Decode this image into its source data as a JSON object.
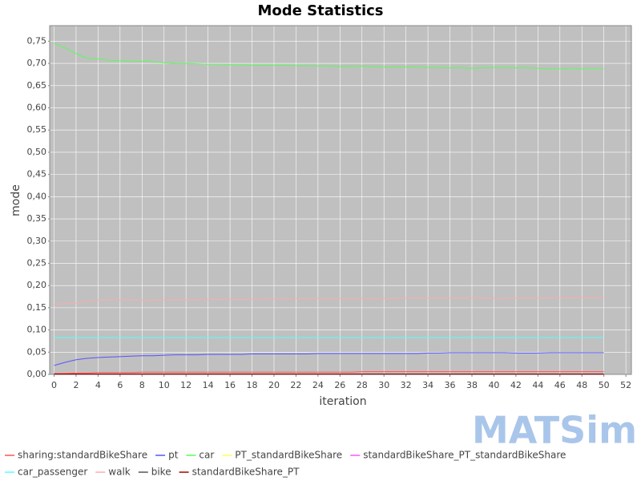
{
  "chart_data": {
    "type": "line",
    "title": "Mode Statistics",
    "x_label": "iteration",
    "y_label": "mode",
    "logo": "MATSim",
    "grid": true,
    "legend": "bottom",
    "x": [
      0,
      1,
      2,
      3,
      4,
      5,
      6,
      7,
      8,
      9,
      10,
      11,
      12,
      13,
      14,
      15,
      16,
      17,
      18,
      19,
      20,
      21,
      22,
      23,
      24,
      25,
      26,
      27,
      28,
      29,
      30,
      31,
      32,
      33,
      34,
      35,
      36,
      37,
      38,
      39,
      40,
      41,
      42,
      43,
      44,
      45,
      46,
      47,
      48,
      49,
      50
    ],
    "xlim": [
      -0.4,
      52.5
    ],
    "xticks": [
      0,
      2,
      4,
      6,
      8,
      10,
      12,
      14,
      16,
      18,
      20,
      22,
      24,
      26,
      28,
      30,
      32,
      34,
      36,
      38,
      40,
      42,
      44,
      46,
      48,
      50,
      52
    ],
    "ylim": [
      0,
      0.785
    ],
    "yticks": [
      {
        "value": 0,
        "label": "0,00"
      },
      {
        "value": 0.05,
        "label": "0,05"
      },
      {
        "value": 0.1,
        "label": "0,10"
      },
      {
        "value": 0.15,
        "label": "0,15"
      },
      {
        "value": 0.2,
        "label": "0,20"
      },
      {
        "value": 0.25,
        "label": "0,25"
      },
      {
        "value": 0.3,
        "label": "0,30"
      },
      {
        "value": 0.35,
        "label": "0,35"
      },
      {
        "value": 0.4,
        "label": "0,40"
      },
      {
        "value": 0.45,
        "label": "0,45"
      },
      {
        "value": 0.5,
        "label": "0,50"
      },
      {
        "value": 0.55,
        "label": "0,55"
      },
      {
        "value": 0.6,
        "label": "0,60"
      },
      {
        "value": 0.65,
        "label": "0,65"
      },
      {
        "value": 0.7,
        "label": "0,70"
      },
      {
        "value": 0.75,
        "label": "0,75"
      }
    ],
    "series": [
      {
        "name": "sharing:standardBikeShare",
        "color": "#ff5555",
        "values": [
          0.002,
          0.002,
          0.003,
          0.003,
          0.004,
          0.004,
          0.004,
          0.004,
          0.005,
          0.005,
          0.005,
          0.005,
          0.005,
          0.005,
          0.005,
          0.005,
          0.005,
          0.005,
          0.005,
          0.005,
          0.005,
          0.005,
          0.005,
          0.005,
          0.005,
          0.005,
          0.005,
          0.005,
          0.006,
          0.006,
          0.006,
          0.006,
          0.006,
          0.006,
          0.006,
          0.006,
          0.006,
          0.006,
          0.006,
          0.006,
          0.006,
          0.006,
          0.006,
          0.006,
          0.006,
          0.006,
          0.006,
          0.006,
          0.006,
          0.006,
          0.006
        ]
      },
      {
        "name": "pt",
        "color": "#5555ff",
        "values": [
          0.02,
          0.027,
          0.033,
          0.036,
          0.038,
          0.039,
          0.04,
          0.041,
          0.042,
          0.042,
          0.043,
          0.044,
          0.044,
          0.044,
          0.045,
          0.045,
          0.045,
          0.045,
          0.046,
          0.046,
          0.046,
          0.046,
          0.046,
          0.046,
          0.047,
          0.047,
          0.047,
          0.047,
          0.047,
          0.047,
          0.047,
          0.047,
          0.047,
          0.047,
          0.048,
          0.048,
          0.049,
          0.049,
          0.049,
          0.049,
          0.049,
          0.049,
          0.048,
          0.048,
          0.048,
          0.049,
          0.049,
          0.049,
          0.049,
          0.049,
          0.049
        ]
      },
      {
        "name": "car",
        "color": "#55ff55",
        "values": [
          0.745,
          0.735,
          0.722,
          0.712,
          0.71,
          0.707,
          0.706,
          0.705,
          0.705,
          0.704,
          0.701,
          0.7,
          0.7,
          0.699,
          0.698,
          0.698,
          0.697,
          0.697,
          0.696,
          0.696,
          0.696,
          0.696,
          0.695,
          0.695,
          0.694,
          0.694,
          0.693,
          0.693,
          0.694,
          0.693,
          0.692,
          0.692,
          0.692,
          0.692,
          0.691,
          0.691,
          0.69,
          0.69,
          0.689,
          0.69,
          0.691,
          0.691,
          0.69,
          0.69,
          0.689,
          0.688,
          0.688,
          0.688,
          0.688,
          0.688,
          0.688
        ]
      },
      {
        "name": "PT_standardBikeShare",
        "color": "#ffff55",
        "values": [
          0,
          0,
          0,
          0,
          0,
          0,
          0,
          0,
          0,
          0,
          0,
          0,
          0,
          0,
          0,
          0,
          0,
          0,
          0,
          0,
          0,
          0,
          0,
          0,
          0,
          0,
          0,
          0,
          0,
          0,
          0,
          0,
          0,
          0,
          0,
          0,
          0,
          0,
          0,
          0,
          0,
          0,
          0,
          0,
          0,
          0,
          0,
          0,
          0,
          0,
          0
        ]
      },
      {
        "name": "standardBikeShare_PT_standardBikeShare",
        "color": "#ff55ff",
        "values": [
          0,
          0,
          0,
          0,
          0,
          0,
          0,
          0,
          0,
          0,
          0,
          0,
          0,
          0,
          0,
          0,
          0,
          0,
          0,
          0,
          0,
          0,
          0,
          0,
          0,
          0,
          0,
          0,
          0,
          0,
          0,
          0,
          0,
          0,
          0,
          0,
          0,
          0,
          0,
          0,
          0,
          0,
          0,
          0,
          0,
          0,
          0,
          0,
          0,
          0,
          0
        ]
      },
      {
        "name": "car_passenger",
        "color": "#55ffff",
        "values": [
          0.083,
          0.083,
          0.083,
          0.083,
          0.083,
          0.083,
          0.083,
          0.083,
          0.083,
          0.083,
          0.083,
          0.083,
          0.083,
          0.083,
          0.083,
          0.083,
          0.083,
          0.083,
          0.083,
          0.083,
          0.083,
          0.083,
          0.083,
          0.083,
          0.083,
          0.083,
          0.083,
          0.083,
          0.083,
          0.083,
          0.083,
          0.083,
          0.083,
          0.083,
          0.083,
          0.083,
          0.083,
          0.083,
          0.083,
          0.083,
          0.083,
          0.083,
          0.083,
          0.083,
          0.083,
          0.083,
          0.083,
          0.083,
          0.083,
          0.083,
          0.083
        ]
      },
      {
        "name": "walk",
        "color": "#ffaaaa",
        "values": [
          0.158,
          0.159,
          0.16,
          0.165,
          0.167,
          0.168,
          0.168,
          0.168,
          0.167,
          0.167,
          0.168,
          0.168,
          0.168,
          0.168,
          0.169,
          0.169,
          0.169,
          0.169,
          0.169,
          0.17,
          0.17,
          0.17,
          0.171,
          0.171,
          0.171,
          0.171,
          0.171,
          0.171,
          0.171,
          0.171,
          0.171,
          0.171,
          0.172,
          0.172,
          0.172,
          0.172,
          0.172,
          0.172,
          0.172,
          0.172,
          0.171,
          0.171,
          0.172,
          0.172,
          0.172,
          0.172,
          0.173,
          0.173,
          0.173,
          0.173,
          0.173
        ]
      },
      {
        "name": "bike",
        "color": "#555555",
        "values": [
          0,
          0,
          0,
          0,
          0,
          0,
          0,
          0,
          0,
          0,
          0,
          0,
          0,
          0,
          0,
          0,
          0,
          0,
          0,
          0,
          0,
          0,
          0,
          0,
          0,
          0,
          0,
          0,
          0,
          0,
          0,
          0,
          0,
          0,
          0,
          0,
          0,
          0,
          0,
          0,
          0,
          0,
          0,
          0,
          0,
          0,
          0,
          0,
          0,
          0,
          0
        ]
      },
      {
        "name": "standardBikeShare_PT",
        "color": "#aa0000",
        "values": [
          0.001,
          0.001,
          0.001,
          0.001,
          0.001,
          0.001,
          0.001,
          0.001,
          0.001,
          0.001,
          0.001,
          0.001,
          0.001,
          0.001,
          0.001,
          0.001,
          0.001,
          0.001,
          0.001,
          0.001,
          0.001,
          0.001,
          0.001,
          0.001,
          0.001,
          0.001,
          0.001,
          0.001,
          0.001,
          0.001,
          0.001,
          0.001,
          0.001,
          0.001,
          0.001,
          0.001,
          0.001,
          0.001,
          0.001,
          0.001,
          0.001,
          0.001,
          0.001,
          0.001,
          0.001,
          0.001,
          0.001,
          0.001,
          0.001,
          0.001,
          0.001
        ]
      }
    ]
  }
}
